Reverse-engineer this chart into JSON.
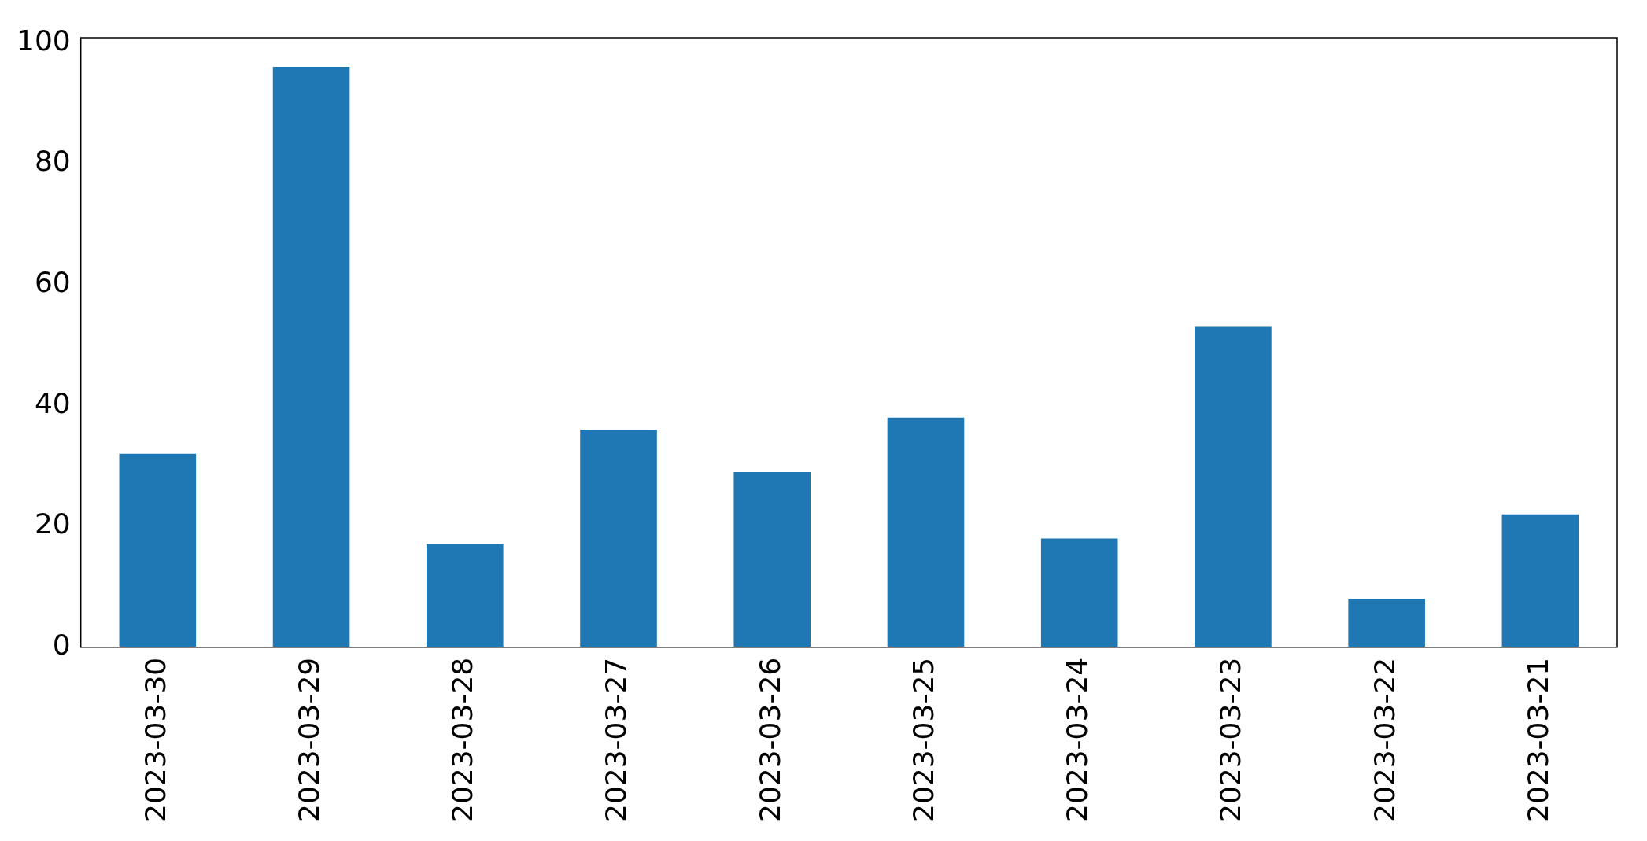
{
  "chart_data": {
    "type": "bar",
    "categories": [
      "2023-03-30",
      "2023-03-29",
      "2023-03-28",
      "2023-03-27",
      "2023-03-26",
      "2023-03-25",
      "2023-03-24",
      "2023-03-23",
      "2023-03-22",
      "2023-03-21"
    ],
    "values": [
      32,
      96,
      17,
      36,
      29,
      38,
      18,
      53,
      8,
      22
    ],
    "color": "#1f77b4",
    "ylim": [
      0,
      100.8
    ],
    "yticks": [
      0,
      20,
      40,
      60,
      80,
      100
    ],
    "grid": false,
    "legend": false
  }
}
